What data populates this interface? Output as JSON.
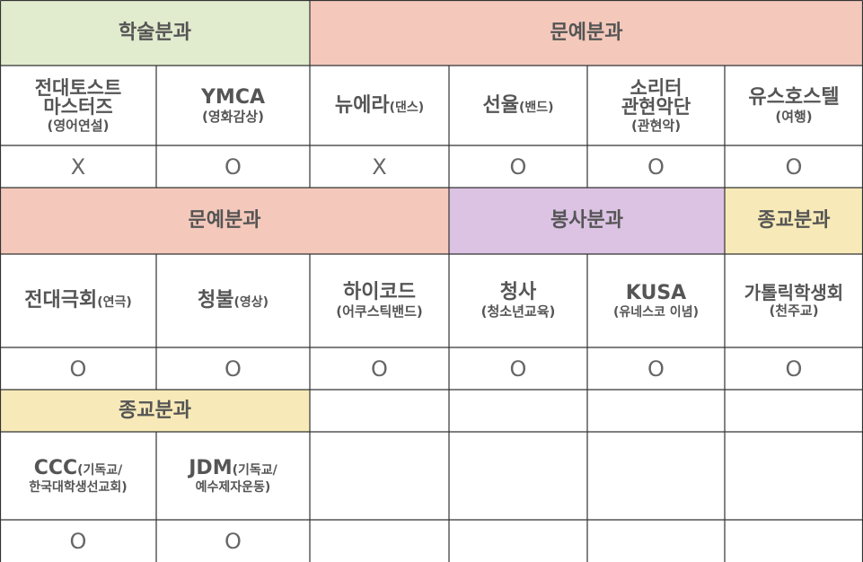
{
  "colors": {
    "academic": "#e1ebce",
    "arts": "#f4c9bb",
    "volunteer": "#dcc3e4",
    "religion": "#f8eab8",
    "blank": "#ffffff"
  },
  "headers": {
    "academic": "학술분과",
    "arts_1": "문예분과",
    "arts_2": "문예분과",
    "volunteer": "봉사분과",
    "religion_1": "종교분과",
    "religion_2": "종교분과"
  },
  "clubs": {
    "c1": {
      "line1": "전대토스트",
      "line2": "마스터즈",
      "sub": "(영어연설)",
      "mark": "X"
    },
    "c2": {
      "name": "YMCA",
      "sub": "(영화감상)",
      "mark": "O"
    },
    "c3": {
      "name": "뉴에라",
      "inline": "(댄스)",
      "mark": "X"
    },
    "c4": {
      "name": "선율",
      "inline": "(밴드)",
      "mark": "O"
    },
    "c5": {
      "line1": "소리터",
      "line2": "관현악단",
      "sub": "(관현악)",
      "mark": "O"
    },
    "c6": {
      "name": "유스호스텔",
      "sub": "(여행)",
      "mark": "O"
    },
    "c7": {
      "name": "전대극회",
      "inline": "(연극)",
      "mark": "O"
    },
    "c8": {
      "name": "청불",
      "inline": "(영상)",
      "mark": "O"
    },
    "c9": {
      "name": "하이코드",
      "sub": "(어쿠스틱밴드)",
      "mark": "O"
    },
    "c10": {
      "name": "청사",
      "sub": "(청소년교육)",
      "mark": "O"
    },
    "c11": {
      "name": "KUSA",
      "sub": "(유네스코 이념)",
      "mark": "O"
    },
    "c12": {
      "name": "가톨릭학생회",
      "sub": "(천주교)",
      "mark": "O"
    },
    "c13": {
      "name": "CCC",
      "inline": "(기독교/",
      "sub": "한국대학생선교회)",
      "mark": "O"
    },
    "c14": {
      "name": "JDM",
      "inline": "(기독교/",
      "sub": "예수제자운동)",
      "mark": "O"
    }
  }
}
